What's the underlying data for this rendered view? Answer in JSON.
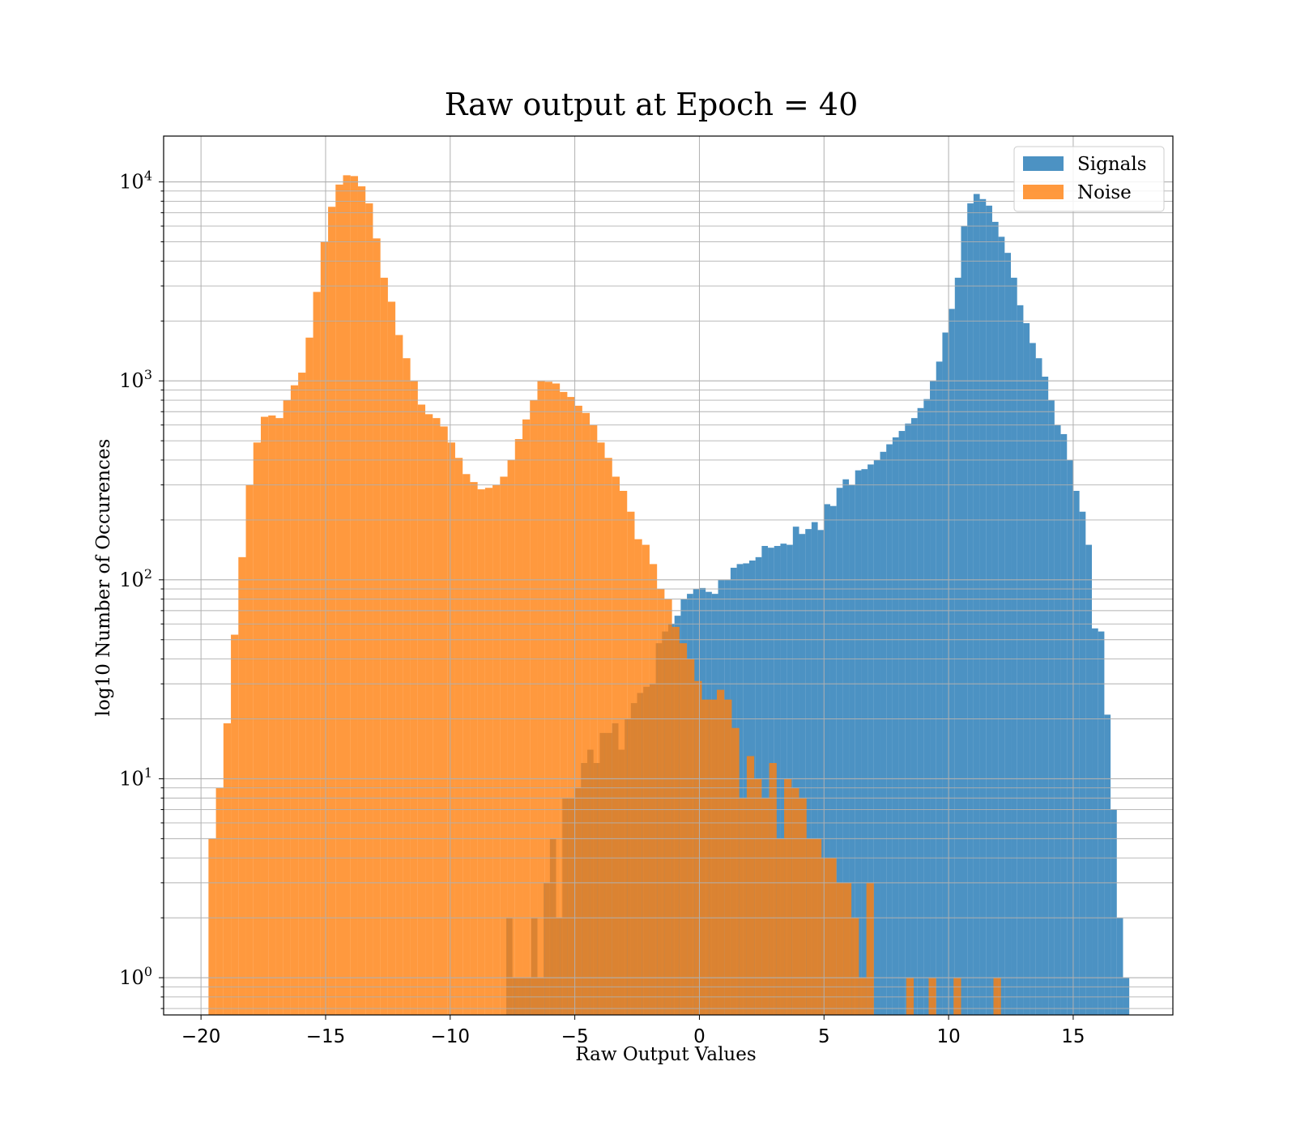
{
  "chart_data": {
    "type": "bar",
    "title": "Raw output at Epoch = 40",
    "xlabel": "Raw Output Values",
    "ylabel": "log10 Number of Occurences",
    "yscale": "log",
    "xlim": [
      -21.5,
      19
    ],
    "ylim": [
      0.65,
      17000
    ],
    "xticks": [
      -20,
      -15,
      -10,
      -5,
      0,
      5,
      10,
      15
    ],
    "xtick_labels": [
      "−20",
      "−15",
      "−10",
      "−5",
      "0",
      "5",
      "10",
      "15"
    ],
    "yticks": [
      {
        "value": 1,
        "base": "10",
        "exp": "0"
      },
      {
        "value": 10,
        "base": "10",
        "exp": "1"
      },
      {
        "value": 100,
        "base": "10",
        "exp": "2"
      },
      {
        "value": 1000,
        "base": "10",
        "exp": "3"
      },
      {
        "value": 10000,
        "base": "10",
        "exp": "4"
      }
    ],
    "grid": true,
    "legend_position": "top-right",
    "series": [
      {
        "name": "Signals",
        "color": "#1f77b4",
        "opacity": 0.8,
        "bins": [
          [
            -7.75,
            -7.5,
            2
          ],
          [
            -7.5,
            -7.25,
            1
          ],
          [
            -7.25,
            -7,
            1
          ],
          [
            -7,
            -6.75,
            1
          ],
          [
            -6.75,
            -6.5,
            2
          ],
          [
            -6.5,
            -6.25,
            1
          ],
          [
            -6.25,
            -6,
            3
          ],
          [
            -6,
            -5.75,
            5
          ],
          [
            -5.75,
            -5.5,
            2
          ],
          [
            -5.5,
            -5.25,
            8
          ],
          [
            -5.25,
            -5,
            8
          ],
          [
            -5,
            -4.75,
            9
          ],
          [
            -4.75,
            -4.5,
            12
          ],
          [
            -4.5,
            -4.25,
            14
          ],
          [
            -4.25,
            -4,
            12
          ],
          [
            -4,
            -3.75,
            17
          ],
          [
            -3.75,
            -3.5,
            17
          ],
          [
            -3.5,
            -3.25,
            19
          ],
          [
            -3.25,
            -3,
            14
          ],
          [
            -3,
            -2.75,
            20
          ],
          [
            -2.75,
            -2.5,
            24
          ],
          [
            -2.5,
            -2.25,
            27
          ],
          [
            -2.25,
            -2,
            29
          ],
          [
            -2,
            -1.75,
            30
          ],
          [
            -1.75,
            -1.5,
            48
          ],
          [
            -1.5,
            -1.25,
            55
          ],
          [
            -1.25,
            -1,
            60
          ],
          [
            -1,
            -0.75,
            66
          ],
          [
            -0.75,
            -0.5,
            80
          ],
          [
            -0.5,
            -0.25,
            85
          ],
          [
            -0.25,
            0,
            90
          ],
          [
            0,
            0.25,
            91
          ],
          [
            0.25,
            0.5,
            87
          ],
          [
            0.5,
            0.75,
            85
          ],
          [
            0.75,
            1,
            100
          ],
          [
            1,
            1.25,
            100
          ],
          [
            1.25,
            1.5,
            115
          ],
          [
            1.5,
            1.75,
            120
          ],
          [
            1.75,
            2,
            121
          ],
          [
            2,
            2.25,
            125
          ],
          [
            2.25,
            2.5,
            130
          ],
          [
            2.5,
            2.75,
            148
          ],
          [
            2.75,
            3,
            145
          ],
          [
            3,
            3.25,
            148
          ],
          [
            3.25,
            3.5,
            152
          ],
          [
            3.5,
            3.75,
            150
          ],
          [
            3.75,
            4,
            185
          ],
          [
            4,
            4.25,
            170
          ],
          [
            4.25,
            4.5,
            180
          ],
          [
            4.5,
            4.75,
            195
          ],
          [
            4.75,
            5,
            178
          ],
          [
            5,
            5.25,
            240
          ],
          [
            5.25,
            5.5,
            235
          ],
          [
            5.5,
            5.75,
            290
          ],
          [
            5.75,
            6,
            320
          ],
          [
            6,
            6.25,
            300
          ],
          [
            6.25,
            6.5,
            355
          ],
          [
            6.5,
            6.75,
            360
          ],
          [
            6.75,
            7,
            380
          ],
          [
            7,
            7.25,
            400
          ],
          [
            7.25,
            7.5,
            440
          ],
          [
            7.5,
            7.75,
            480
          ],
          [
            7.75,
            8,
            520
          ],
          [
            8,
            8.25,
            560
          ],
          [
            8.25,
            8.5,
            610
          ],
          [
            8.5,
            8.75,
            650
          ],
          [
            8.75,
            9,
            730
          ],
          [
            9,
            9.25,
            810
          ],
          [
            9.25,
            9.5,
            1000
          ],
          [
            9.5,
            9.75,
            1250
          ],
          [
            9.75,
            10,
            1750
          ],
          [
            10,
            10.25,
            2300
          ],
          [
            10.25,
            10.5,
            3300
          ],
          [
            10.5,
            10.75,
            6000
          ],
          [
            10.75,
            11,
            7800
          ],
          [
            11,
            11.25,
            8700
          ],
          [
            11.25,
            11.5,
            8200
          ],
          [
            11.5,
            11.75,
            7600
          ],
          [
            11.75,
            12,
            6300
          ],
          [
            12,
            12.25,
            5300
          ],
          [
            12.25,
            12.5,
            4400
          ],
          [
            12.5,
            12.75,
            3300
          ],
          [
            12.75,
            13,
            2400
          ],
          [
            13,
            13.25,
            1950
          ],
          [
            13.25,
            13.5,
            1550
          ],
          [
            13.5,
            13.75,
            1300
          ],
          [
            13.75,
            14,
            1050
          ],
          [
            14,
            14.25,
            800
          ],
          [
            14.25,
            14.5,
            600
          ],
          [
            14.5,
            14.75,
            540
          ],
          [
            14.75,
            15,
            400
          ],
          [
            15,
            15.25,
            280
          ],
          [
            15.25,
            15.5,
            220
          ],
          [
            15.5,
            15.75,
            150
          ],
          [
            15.75,
            16,
            57
          ],
          [
            16,
            16.25,
            55
          ],
          [
            16.25,
            16.5,
            21
          ],
          [
            16.5,
            16.75,
            7
          ],
          [
            16.75,
            17,
            2
          ],
          [
            17,
            17.25,
            1
          ]
        ]
      },
      {
        "name": "Noise",
        "color": "#ff7f0e",
        "opacity": 0.8,
        "bins": [
          [
            -19.7,
            -19.4,
            5
          ],
          [
            -19.4,
            -19.1,
            9
          ],
          [
            -19.1,
            -18.8,
            19
          ],
          [
            -18.8,
            -18.5,
            53
          ],
          [
            -18.5,
            -18.2,
            130
          ],
          [
            -18.2,
            -17.9,
            300
          ],
          [
            -17.9,
            -17.6,
            490
          ],
          [
            -17.6,
            -17.3,
            660
          ],
          [
            -17.3,
            -17,
            670
          ],
          [
            -17,
            -16.7,
            650
          ],
          [
            -16.7,
            -16.4,
            800
          ],
          [
            -16.4,
            -16.1,
            950
          ],
          [
            -16.1,
            -15.8,
            1100
          ],
          [
            -15.8,
            -15.5,
            1650
          ],
          [
            -15.5,
            -15.2,
            2800
          ],
          [
            -15.2,
            -14.9,
            5000
          ],
          [
            -14.9,
            -14.6,
            7500
          ],
          [
            -14.6,
            -14.3,
            9700
          ],
          [
            -14.3,
            -14,
            10800
          ],
          [
            -14,
            -13.7,
            10700
          ],
          [
            -13.7,
            -13.4,
            9500
          ],
          [
            -13.4,
            -13.1,
            7800
          ],
          [
            -13.1,
            -12.8,
            5200
          ],
          [
            -12.8,
            -12.5,
            3300
          ],
          [
            -12.5,
            -12.2,
            2500
          ],
          [
            -12.2,
            -11.9,
            1700
          ],
          [
            -11.9,
            -11.6,
            1300
          ],
          [
            -11.6,
            -11.3,
            1000
          ],
          [
            -11.3,
            -11,
            760
          ],
          [
            -11,
            -10.7,
            680
          ],
          [
            -10.7,
            -10.4,
            650
          ],
          [
            -10.4,
            -10.1,
            590
          ],
          [
            -10.1,
            -9.8,
            490
          ],
          [
            -9.8,
            -9.5,
            410
          ],
          [
            -9.5,
            -9.2,
            340
          ],
          [
            -9.2,
            -8.9,
            310
          ],
          [
            -8.9,
            -8.6,
            285
          ],
          [
            -8.6,
            -8.3,
            290
          ],
          [
            -8.3,
            -8,
            300
          ],
          [
            -8,
            -7.7,
            330
          ],
          [
            -7.7,
            -7.4,
            400
          ],
          [
            -7.4,
            -7.1,
            510
          ],
          [
            -7.1,
            -6.8,
            640
          ],
          [
            -6.8,
            -6.5,
            800
          ],
          [
            -6.5,
            -6.2,
            1000
          ],
          [
            -6.2,
            -5.9,
            990
          ],
          [
            -5.9,
            -5.6,
            970
          ],
          [
            -5.6,
            -5.3,
            880
          ],
          [
            -5.3,
            -5,
            830
          ],
          [
            -5,
            -4.7,
            750
          ],
          [
            -4.7,
            -4.4,
            690
          ],
          [
            -4.4,
            -4.1,
            600
          ],
          [
            -4.1,
            -3.8,
            490
          ],
          [
            -3.8,
            -3.5,
            410
          ],
          [
            -3.5,
            -3.2,
            330
          ],
          [
            -3.2,
            -2.9,
            280
          ],
          [
            -2.9,
            -2.6,
            220
          ],
          [
            -2.6,
            -2.3,
            160
          ],
          [
            -2.3,
            -2,
            150
          ],
          [
            -2,
            -1.7,
            120
          ],
          [
            -1.7,
            -1.4,
            90
          ],
          [
            -1.4,
            -1.1,
            80
          ],
          [
            -1.1,
            -0.8,
            58
          ],
          [
            -0.8,
            -0.5,
            48
          ],
          [
            -0.5,
            -0.2,
            40
          ],
          [
            -0.2,
            0.1,
            31
          ],
          [
            0.1,
            0.4,
            25
          ],
          [
            0.4,
            0.7,
            25
          ],
          [
            0.7,
            1,
            28
          ],
          [
            1,
            1.3,
            25
          ],
          [
            1.3,
            1.6,
            18
          ],
          [
            1.6,
            1.9,
            8
          ],
          [
            1.9,
            2.2,
            13
          ],
          [
            2.2,
            2.5,
            10
          ],
          [
            2.5,
            2.8,
            8
          ],
          [
            2.8,
            3.1,
            12
          ],
          [
            3.1,
            3.4,
            5
          ],
          [
            3.4,
            3.7,
            10
          ],
          [
            3.7,
            4,
            9
          ],
          [
            4,
            4.3,
            8
          ],
          [
            4.3,
            4.6,
            5
          ],
          [
            4.6,
            4.9,
            5
          ],
          [
            4.9,
            5.2,
            4
          ],
          [
            5.2,
            5.5,
            4
          ],
          [
            5.5,
            5.8,
            3
          ],
          [
            5.8,
            6.1,
            3
          ],
          [
            6.1,
            6.4,
            2
          ],
          [
            6.4,
            6.7,
            1
          ],
          [
            6.7,
            7,
            3
          ],
          [
            8.3,
            8.6,
            1
          ],
          [
            9.2,
            9.5,
            1
          ],
          [
            10.2,
            10.5,
            1
          ],
          [
            11.8,
            12.1,
            1
          ]
        ]
      }
    ]
  }
}
